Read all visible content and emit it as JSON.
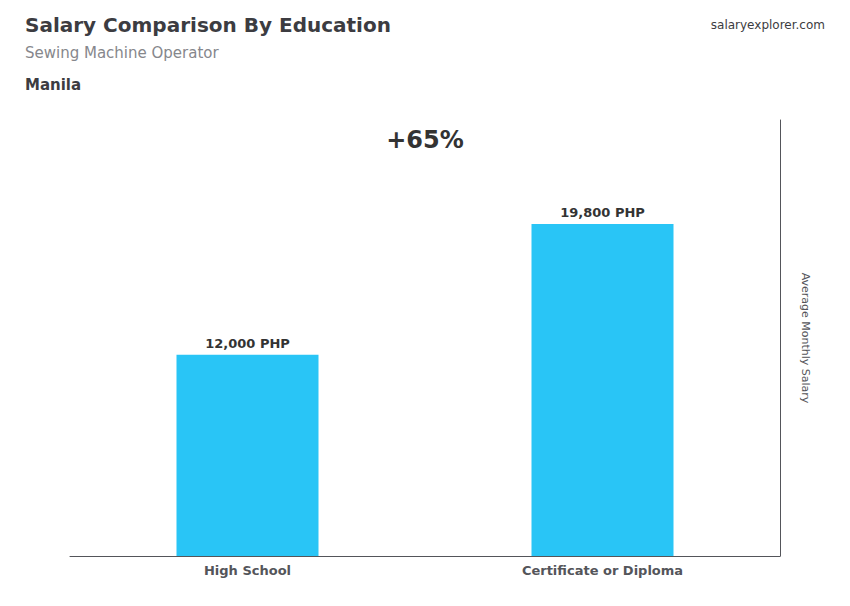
{
  "chart_data": {
    "type": "bar",
    "title": "Salary Comparison By Education",
    "subtitle": "Sewing Machine Operator",
    "annotations": [
      "Manila",
      "+65%",
      "salaryexplorer.com"
    ],
    "ylabel": "Average Monthly Salary",
    "categories": [
      "High School",
      "Certificate or Diploma"
    ],
    "values": [
      12000,
      19800
    ],
    "value_labels": [
      "12,000 PHP",
      "19,800 PHP"
    ],
    "color": "#29c5f6",
    "ylim": [
      0,
      26000
    ],
    "data_labels": true,
    "tick_labels": "x",
    "grid": false
  }
}
